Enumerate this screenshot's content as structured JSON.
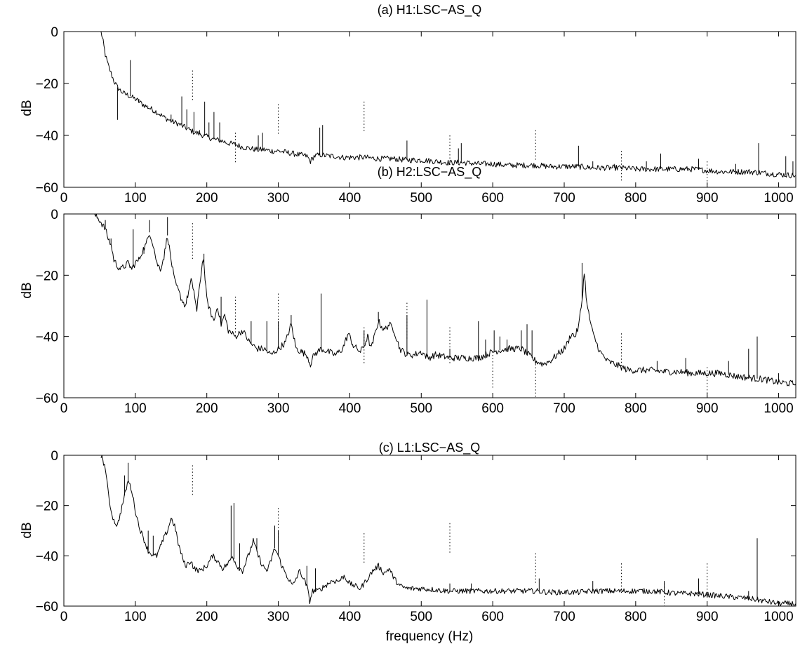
{
  "chart_data": [
    {
      "type": "line",
      "title": "(a) H1:LSC−AS_Q",
      "xlabel": "",
      "ylabel": "dB",
      "xlim": [
        0,
        1024
      ],
      "ylim": [
        -60,
        0
      ],
      "xticks": [
        0,
        100,
        200,
        300,
        400,
        500,
        600,
        700,
        800,
        900,
        1000
      ],
      "yticks": [
        0,
        -20,
        -40,
        -60
      ],
      "grid": false,
      "series": [
        {
          "x": [
            52,
            55,
            58,
            62,
            66,
            70,
            75,
            80,
            85,
            90,
            100,
            110,
            120,
            130,
            140,
            150,
            160,
            170,
            180,
            190,
            200,
            210,
            220,
            230,
            240,
            250,
            260,
            270,
            280,
            290,
            300,
            310,
            320,
            330,
            340,
            345,
            350,
            360,
            370,
            380,
            390,
            400,
            420,
            440,
            460,
            480,
            500,
            520,
            540,
            560,
            580,
            600,
            620,
            640,
            660,
            680,
            700,
            720,
            740,
            760,
            780,
            800,
            820,
            840,
            860,
            880,
            900,
            920,
            940,
            960,
            980,
            1000,
            1024
          ],
          "y": [
            0,
            -4,
            -9,
            -13,
            -16,
            -19,
            -21.5,
            -23,
            -24,
            -24.5,
            -26,
            -28,
            -29.5,
            -31,
            -33,
            -34.5,
            -35.5,
            -37,
            -38.5,
            -39.5,
            -40.5,
            -41.5,
            -42,
            -43,
            -43.5,
            -44.5,
            -45,
            -45.5,
            -45.5,
            -46,
            -46,
            -46.5,
            -47,
            -47.5,
            -48,
            -50,
            -48,
            -47.5,
            -48,
            -48,
            -48.5,
            -48.5,
            -48.5,
            -49,
            -49,
            -49.5,
            -49.5,
            -50,
            -50.5,
            -50.5,
            -51,
            -51,
            -51.5,
            -51.5,
            -51.5,
            -52,
            -52,
            -52,
            -52.5,
            -52.5,
            -52.5,
            -53,
            -53,
            -53,
            -53,
            -53,
            -53.5,
            -54,
            -54,
            -54,
            -54.5,
            -55,
            -55.5
          ]
        }
      ],
      "peaks": [
        [
          75,
          -34
        ],
        [
          93,
          -11
        ],
        [
          105,
          -26
        ],
        [
          118,
          -29
        ],
        [
          140,
          -33
        ],
        [
          150,
          -32
        ],
        [
          165,
          -25
        ],
        [
          172,
          -30
        ],
        [
          182,
          -31
        ],
        [
          190,
          -38
        ],
        [
          197,
          -27
        ],
        [
          203,
          -35
        ],
        [
          210,
          -31
        ],
        [
          218,
          -35
        ],
        [
          240,
          -43
        ],
        [
          272,
          -40
        ],
        [
          278,
          -39
        ],
        [
          358,
          -37
        ],
        [
          362,
          -36
        ],
        [
          480,
          -42
        ],
        [
          552,
          -45
        ],
        [
          556,
          -43
        ],
        [
          720,
          -44
        ],
        [
          740,
          -50
        ],
        [
          770,
          -51
        ],
        [
          815,
          -50
        ],
        [
          835,
          -47
        ],
        [
          888,
          -49
        ],
        [
          940,
          -51
        ],
        [
          972,
          -43
        ],
        [
          1010,
          -48
        ],
        [
          1020,
          -50
        ]
      ],
      "harmonics": [
        [
          180,
          -15
        ],
        [
          240,
          -39
        ],
        [
          300,
          -28
        ],
        [
          420,
          -27
        ],
        [
          540,
          -40
        ],
        [
          660,
          -38
        ],
        [
          780,
          -46
        ],
        [
          900,
          -50
        ]
      ]
    },
    {
      "type": "line",
      "title": "(b) H2:LSC−AS_Q",
      "xlabel": "",
      "ylabel": "dB",
      "xlim": [
        0,
        1024
      ],
      "ylim": [
        -60,
        0
      ],
      "xticks": [
        0,
        100,
        200,
        300,
        400,
        500,
        600,
        700,
        800,
        900,
        1000
      ],
      "yticks": [
        0,
        -20,
        -40,
        -60
      ],
      "grid": false,
      "series": [
        {
          "x": [
            42,
            50,
            58,
            62,
            66,
            70,
            75,
            80,
            85,
            90,
            95,
            100,
            105,
            110,
            115,
            120,
            125,
            130,
            135,
            140,
            145,
            150,
            155,
            160,
            165,
            170,
            178,
            182,
            186,
            190,
            195,
            200,
            205,
            210,
            215,
            220,
            225,
            230,
            240,
            250,
            260,
            270,
            280,
            290,
            300,
            310,
            318,
            325,
            340,
            345,
            350,
            360,
            370,
            380,
            390,
            398,
            405,
            415,
            420,
            425,
            430,
            440,
            448,
            455,
            462,
            470,
            480,
            490,
            500,
            510,
            520,
            540,
            560,
            580,
            600,
            620,
            640,
            660,
            670,
            680,
            690,
            700,
            705,
            710,
            715,
            720,
            725,
            728,
            732,
            740,
            750,
            760,
            770,
            780,
            790,
            800,
            820,
            840,
            860,
            880,
            900,
            920,
            940,
            960,
            980,
            1000,
            1024
          ],
          "y": [
            0,
            -2,
            -5,
            -8,
            -10,
            -15,
            -17,
            -18,
            -17,
            -16,
            -18,
            -16,
            -15,
            -12,
            -10,
            -6,
            -10,
            -16,
            -18,
            -14,
            -7,
            -15,
            -22,
            -25,
            -28,
            -30,
            -22,
            -25,
            -32,
            -23,
            -14,
            -28,
            -32,
            -35,
            -30,
            -36,
            -33,
            -38,
            -40,
            -38,
            -42,
            -44,
            -44,
            -46,
            -44,
            -42,
            -36,
            -44,
            -46,
            -49,
            -46,
            -44,
            -45,
            -46,
            -44,
            -39,
            -43,
            -45,
            -43,
            -40,
            -44,
            -35,
            -38,
            -36,
            -38,
            -44,
            -46,
            -46,
            -45,
            -47,
            -46,
            -47,
            -47,
            -47,
            -45,
            -44,
            -44,
            -48,
            -49,
            -48,
            -46,
            -44,
            -42,
            -39,
            -40,
            -37,
            -28,
            -19,
            -30,
            -39,
            -45,
            -48,
            -49,
            -50,
            -51,
            -51,
            -51,
            -51.5,
            -51.5,
            -52,
            -52,
            -52,
            -53,
            -53.5,
            -54,
            -55,
            -55.5
          ]
        }
      ],
      "peaks": [
        [
          58,
          -2
        ],
        [
          66,
          -8
        ],
        [
          97,
          -5
        ],
        [
          112,
          -13
        ],
        [
          120,
          -2
        ],
        [
          145,
          -1
        ],
        [
          196,
          -13
        ],
        [
          220,
          -27
        ],
        [
          262,
          -35
        ],
        [
          284,
          -35
        ],
        [
          300,
          -35
        ],
        [
          318,
          -33
        ],
        [
          360,
          -26
        ],
        [
          420,
          -38
        ],
        [
          440,
          -32
        ],
        [
          480,
          -33
        ],
        [
          508,
          -28
        ],
        [
          540,
          -44
        ],
        [
          580,
          -35
        ],
        [
          590,
          -41
        ],
        [
          602,
          -38
        ],
        [
          610,
          -40
        ],
        [
          620,
          -41
        ],
        [
          640,
          -38
        ],
        [
          648,
          -36
        ],
        [
          655,
          -38
        ],
        [
          725,
          -16
        ],
        [
          830,
          -48
        ],
        [
          870,
          -47
        ],
        [
          930,
          -48
        ],
        [
          958,
          -44
        ],
        [
          970,
          -40
        ],
        [
          1000,
          -52
        ]
      ],
      "harmonics": [
        [
          180,
          -3
        ],
        [
          240,
          -27
        ],
        [
          300,
          -26
        ],
        [
          420,
          -37
        ],
        [
          480,
          -29
        ],
        [
          540,
          -37
        ],
        [
          600,
          -45
        ],
        [
          660,
          -48
        ],
        [
          780,
          -39
        ],
        [
          900,
          -50
        ]
      ]
    },
    {
      "type": "line",
      "title": "(c) L1:LSC−AS_Q",
      "xlabel": "frequency (Hz)",
      "ylabel": "dB",
      "xlim": [
        0,
        1024
      ],
      "ylim": [
        -60,
        0
      ],
      "xticks": [
        0,
        100,
        200,
        300,
        400,
        500,
        600,
        700,
        800,
        900,
        1000
      ],
      "yticks": [
        0,
        -20,
        -40,
        -60
      ],
      "grid": false,
      "series": [
        {
          "x": [
            52,
            58,
            62,
            66,
            70,
            75,
            80,
            85,
            90,
            95,
            100,
            105,
            110,
            118,
            125,
            130,
            140,
            145,
            150,
            155,
            160,
            165,
            170,
            178,
            182,
            190,
            200,
            208,
            215,
            222,
            230,
            236,
            242,
            250,
            258,
            265,
            272,
            278,
            285,
            295,
            300,
            305,
            312,
            320,
            330,
            340,
            344,
            348,
            355,
            365,
            375,
            385,
            392,
            400,
            415,
            425,
            432,
            440,
            448,
            455,
            462,
            470,
            480,
            500,
            520,
            540,
            560,
            580,
            600,
            620,
            640,
            660,
            680,
            700,
            720,
            740,
            760,
            780,
            800,
            820,
            840,
            860,
            880,
            900,
            920,
            940,
            960,
            980,
            1000,
            1024
          ],
          "y": [
            0,
            -5,
            -15,
            -22,
            -26,
            -28,
            -22,
            -16,
            -10,
            -14,
            -22,
            -28,
            -32,
            -38,
            -40,
            -40,
            -33,
            -30,
            -25,
            -28,
            -35,
            -40,
            -44,
            -42,
            -45,
            -46,
            -44,
            -40,
            -42,
            -45,
            -43,
            -40,
            -44,
            -46,
            -40,
            -34,
            -40,
            -44,
            -46,
            -37,
            -40,
            -44,
            -48,
            -52,
            -46,
            -52,
            -58,
            -54,
            -54,
            -52,
            -50,
            -50,
            -48,
            -51,
            -53,
            -49,
            -46,
            -44,
            -47,
            -45,
            -49,
            -52,
            -53,
            -53,
            -53.5,
            -54,
            -54,
            -54,
            -54,
            -54,
            -54,
            -54,
            -54.5,
            -54.5,
            -54.5,
            -54,
            -54,
            -54,
            -54,
            -54,
            -54.5,
            -55,
            -55,
            -55.5,
            -56,
            -56.5,
            -57,
            -58,
            -59,
            -59
          ]
        }
      ],
      "peaks": [
        [
          85,
          -8
        ],
        [
          90,
          -3
        ],
        [
          118,
          -30
        ],
        [
          125,
          -32
        ],
        [
          150,
          -26
        ],
        [
          234,
          -20
        ],
        [
          238,
          -19
        ],
        [
          246,
          -35
        ],
        [
          270,
          -33
        ],
        [
          295,
          -28
        ],
        [
          300,
          -30
        ],
        [
          340,
          -44
        ],
        [
          352,
          -45
        ],
        [
          540,
          -51
        ],
        [
          570,
          -51
        ],
        [
          665,
          -49
        ],
        [
          740,
          -50
        ],
        [
          840,
          -50
        ],
        [
          888,
          -49
        ],
        [
          958,
          -54
        ],
        [
          970,
          -33
        ]
      ],
      "harmonics": [
        [
          180,
          -4
        ],
        [
          300,
          -21
        ],
        [
          420,
          -31
        ],
        [
          540,
          -27
        ],
        [
          660,
          -39
        ],
        [
          780,
          -43
        ],
        [
          840,
          -51
        ],
        [
          900,
          -43
        ]
      ]
    }
  ]
}
